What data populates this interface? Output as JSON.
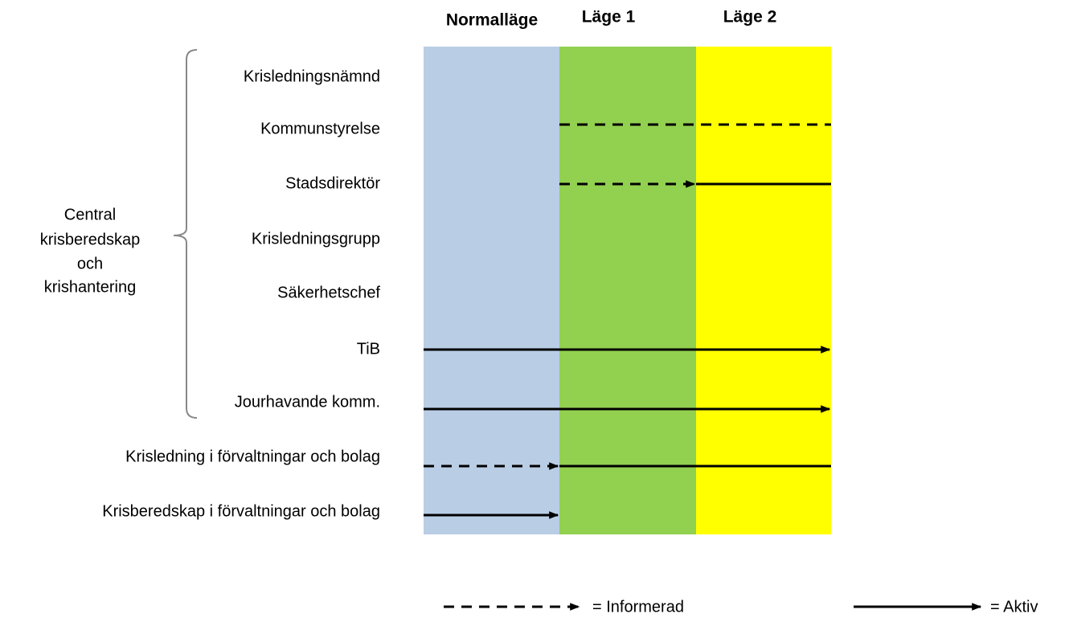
{
  "columns": [
    "Normalläge",
    "Läge 1",
    "Läge 2"
  ],
  "rows": [
    "Krisledningsnämnd",
    "Kommunstyrelse",
    "Stadsdirektör",
    "Krisledningsgrupp",
    "Säkerhetschef",
    "TiB",
    "Jourhavande komm.",
    "Krisledning i förvaltningar och bolag",
    "Krisberedskap i förvaltningar och bolag"
  ],
  "group": {
    "lines": [
      "Central",
      "krisberedskap",
      "och",
      "krishantering"
    ]
  },
  "legend": {
    "informed": "= Informerad",
    "active": "= Aktiv"
  }
}
